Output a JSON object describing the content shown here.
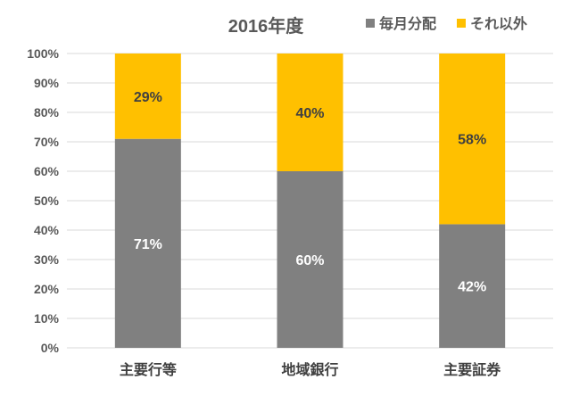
{
  "chart_data": {
    "type": "bar",
    "stacked": true,
    "title": "2016年度",
    "categories": [
      "主要行等",
      "地域銀行",
      "主要証券"
    ],
    "series": [
      {
        "name": "毎月分配",
        "values": [
          71,
          60,
          42
        ],
        "color": "#808080",
        "label_color": "#ffffff"
      },
      {
        "name": "それ以外",
        "values": [
          29,
          40,
          58
        ],
        "color": "#ffc000",
        "label_color": "#404040"
      }
    ],
    "ylim": [
      0,
      100
    ],
    "yticks": [
      0,
      10,
      20,
      30,
      40,
      50,
      60,
      70,
      80,
      90,
      100
    ],
    "ytick_labels": [
      "0%",
      "10%",
      "20%",
      "30%",
      "40%",
      "50%",
      "60%",
      "70%",
      "80%",
      "90%",
      "100%"
    ],
    "data_labels": [
      [
        "71%",
        "60%",
        "42%"
      ],
      [
        "29%",
        "40%",
        "58%"
      ]
    ],
    "xlabel": "",
    "ylabel": "",
    "grid": true,
    "legend_position": "top-right"
  }
}
